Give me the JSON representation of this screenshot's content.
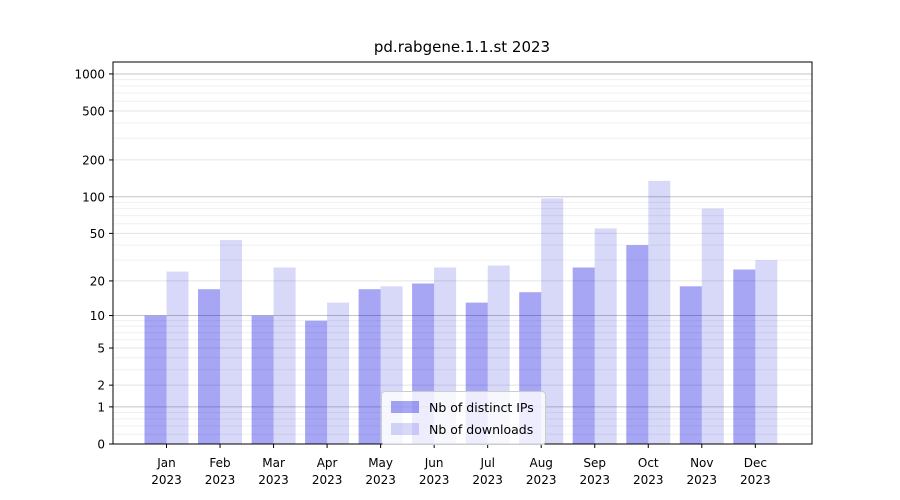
{
  "chart_data": {
    "type": "bar",
    "title": "pd.rabgene.1.1.st 2023",
    "categories": [
      "Jan 2023",
      "Feb 2023",
      "Mar 2023",
      "Apr 2023",
      "May 2023",
      "Jun 2023",
      "Jul 2023",
      "Aug 2023",
      "Sep 2023",
      "Oct 2023",
      "Nov 2023",
      "Dec 2023"
    ],
    "series": [
      {
        "name": "Nb of distinct IPs",
        "color": "rgba(0,0,226,0.35)",
        "values": [
          10,
          17,
          10,
          9,
          17,
          19,
          13,
          16,
          26,
          40,
          18,
          25
        ]
      },
      {
        "name": "Nb of downloads",
        "color": "rgba(10,10,215,0.16)",
        "values": [
          24,
          44,
          26,
          13,
          18,
          26,
          27,
          97,
          55,
          135,
          80,
          30
        ]
      }
    ],
    "yscale": "log1p",
    "ylim": [
      0,
      1250
    ],
    "yticks": [
      0,
      1,
      2,
      5,
      10,
      20,
      50,
      100,
      200,
      500,
      1000
    ],
    "yticks_minor": [
      0.2,
      0.4,
      0.6,
      0.8,
      3,
      4,
      6,
      7,
      8,
      9,
      30,
      40,
      60,
      70,
      80,
      90,
      300,
      400,
      600,
      700,
      800,
      900
    ],
    "grid": true,
    "legend_position": "inside lower center",
    "colors": {
      "grid_decade": "#c4c4c4",
      "grid_major": "#e4e4e4",
      "grid_minor": "#f0f0f0",
      "axis": "#000000"
    }
  }
}
